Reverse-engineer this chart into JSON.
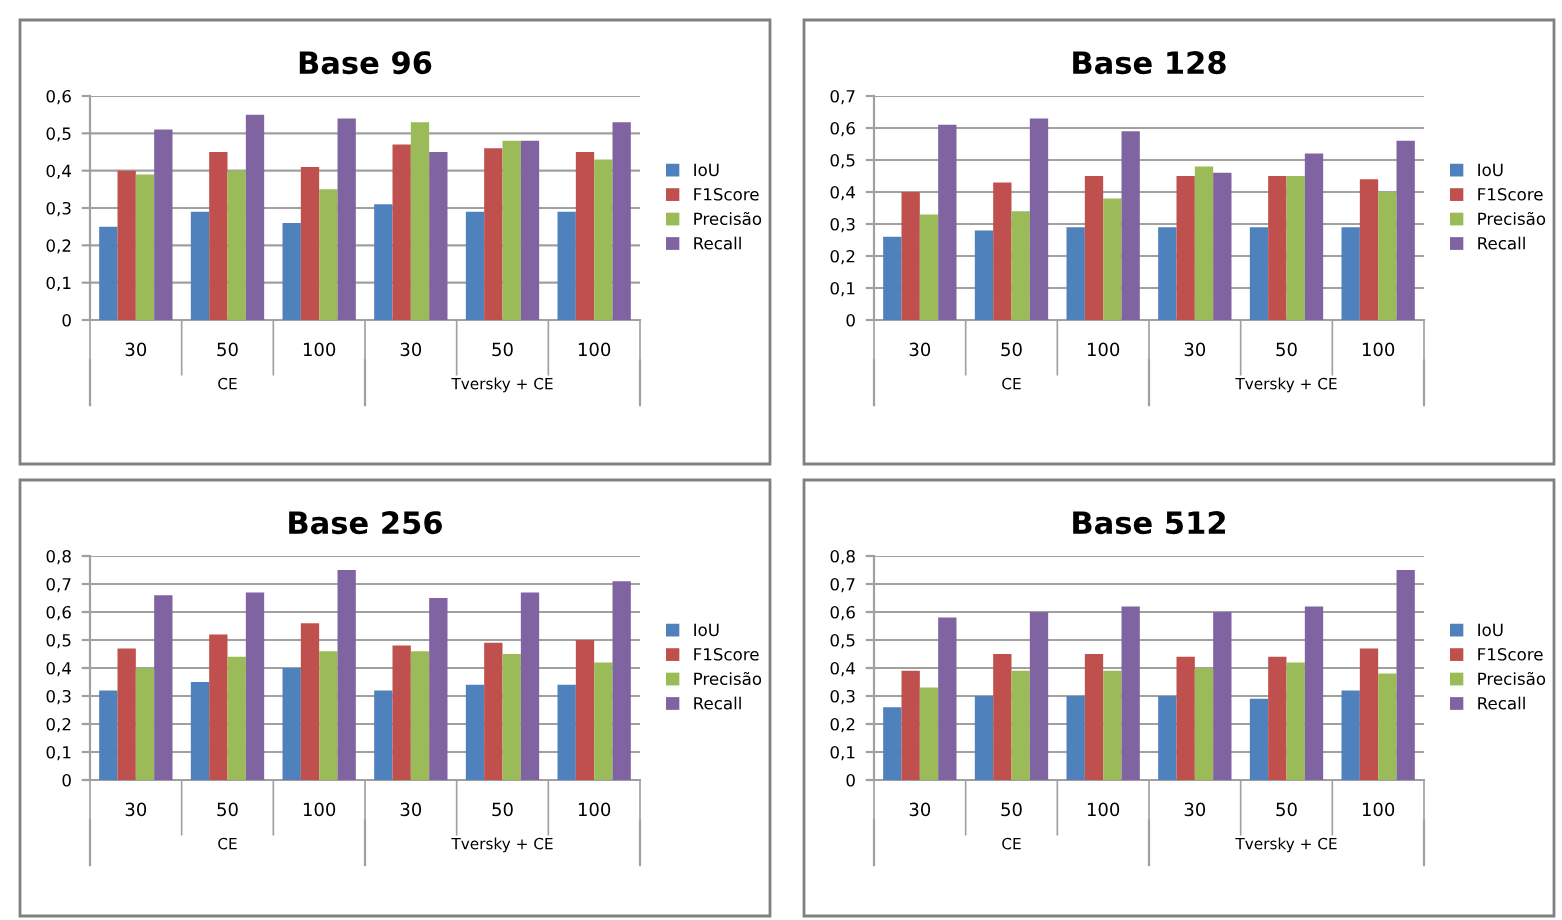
{
  "chart_data": [
    {
      "type": "bar",
      "title": "Base 96",
      "categories": [
        "30",
        "50",
        "100",
        "30",
        "50",
        "100"
      ],
      "annotations": [
        "CE",
        "Tversky + CE"
      ],
      "ylim": [
        0,
        0.6
      ],
      "yticks": [
        {
          "value": 0,
          "label": "0"
        },
        {
          "value": 0.1,
          "label": "0,1"
        },
        {
          "value": 0.2,
          "label": "0,2"
        },
        {
          "value": 0.3,
          "label": "0,3"
        },
        {
          "value": 0.4,
          "label": "0,4"
        },
        {
          "value": 0.5,
          "label": "0,5"
        },
        {
          "value": 0.6,
          "label": "0,6"
        }
      ],
      "grid": "y",
      "legend": "right",
      "series": [
        {
          "name": "IoU",
          "color": "#4f81bd",
          "values": [
            0.25,
            0.29,
            0.26,
            0.31,
            0.29,
            0.29
          ]
        },
        {
          "name": "F1Score",
          "color": "#c0504d",
          "values": [
            0.4,
            0.45,
            0.41,
            0.47,
            0.46,
            0.45
          ]
        },
        {
          "name": "Precisão",
          "color": "#9bbb59",
          "values": [
            0.39,
            0.4,
            0.35,
            0.53,
            0.48,
            0.43
          ]
        },
        {
          "name": "Recall",
          "color": "#8064a2",
          "values": [
            0.51,
            0.55,
            0.54,
            0.45,
            0.48,
            0.53
          ]
        }
      ]
    },
    {
      "type": "bar",
      "title": "Base 128",
      "categories": [
        "30",
        "50",
        "100",
        "30",
        "50",
        "100"
      ],
      "annotations": [
        "CE",
        "Tversky + CE"
      ],
      "ylim": [
        0,
        0.7
      ],
      "yticks": [
        {
          "value": 0,
          "label": "0"
        },
        {
          "value": 0.1,
          "label": "0,1"
        },
        {
          "value": 0.2,
          "label": "0,2"
        },
        {
          "value": 0.3,
          "label": "0,3"
        },
        {
          "value": 0.4,
          "label": "0,4"
        },
        {
          "value": 0.5,
          "label": "0,5"
        },
        {
          "value": 0.6,
          "label": "0,6"
        },
        {
          "value": 0.7,
          "label": "0,7"
        }
      ],
      "grid": "y",
      "legend": "right",
      "series": [
        {
          "name": "IoU",
          "color": "#4f81bd",
          "values": [
            0.26,
            0.28,
            0.29,
            0.29,
            0.29,
            0.29
          ]
        },
        {
          "name": "F1Score",
          "color": "#c0504d",
          "values": [
            0.4,
            0.43,
            0.45,
            0.45,
            0.45,
            0.44
          ]
        },
        {
          "name": "Precisão",
          "color": "#9bbb59",
          "values": [
            0.33,
            0.34,
            0.38,
            0.48,
            0.45,
            0.4
          ]
        },
        {
          "name": "Recall",
          "color": "#8064a2",
          "values": [
            0.61,
            0.63,
            0.59,
            0.46,
            0.52,
            0.56
          ]
        }
      ]
    },
    {
      "type": "bar",
      "title": "Base 256",
      "categories": [
        "30",
        "50",
        "100",
        "30",
        "50",
        "100"
      ],
      "annotations": [
        "CE",
        "Tversky + CE"
      ],
      "ylim": [
        0,
        0.8
      ],
      "yticks": [
        {
          "value": 0,
          "label": "0"
        },
        {
          "value": 0.1,
          "label": "0,1"
        },
        {
          "value": 0.2,
          "label": "0,2"
        },
        {
          "value": 0.3,
          "label": "0,3"
        },
        {
          "value": 0.4,
          "label": "0,4"
        },
        {
          "value": 0.5,
          "label": "0,5"
        },
        {
          "value": 0.6,
          "label": "0,6"
        },
        {
          "value": 0.7,
          "label": "0,7"
        },
        {
          "value": 0.8,
          "label": "0,8"
        }
      ],
      "grid": "y",
      "legend": "right",
      "series": [
        {
          "name": "IoU",
          "color": "#4f81bd",
          "values": [
            0.32,
            0.35,
            0.4,
            0.32,
            0.34,
            0.34
          ]
        },
        {
          "name": "F1Score",
          "color": "#c0504d",
          "values": [
            0.47,
            0.52,
            0.56,
            0.48,
            0.49,
            0.5
          ]
        },
        {
          "name": "Precisão",
          "color": "#9bbb59",
          "values": [
            0.4,
            0.44,
            0.46,
            0.46,
            0.45,
            0.42
          ]
        },
        {
          "name": "Recall",
          "color": "#8064a2",
          "values": [
            0.66,
            0.67,
            0.75,
            0.65,
            0.67,
            0.71
          ]
        }
      ]
    },
    {
      "type": "bar",
      "title": "Base 512",
      "categories": [
        "30",
        "50",
        "100",
        "30",
        "50",
        "100"
      ],
      "annotations": [
        "CE",
        "Tversky + CE"
      ],
      "ylim": [
        0,
        0.8
      ],
      "yticks": [
        {
          "value": 0,
          "label": "0"
        },
        {
          "value": 0.1,
          "label": "0,1"
        },
        {
          "value": 0.2,
          "label": "0,2"
        },
        {
          "value": 0.3,
          "label": "0,3"
        },
        {
          "value": 0.4,
          "label": "0,4"
        },
        {
          "value": 0.5,
          "label": "0,5"
        },
        {
          "value": 0.6,
          "label": "0,6"
        },
        {
          "value": 0.7,
          "label": "0,7"
        },
        {
          "value": 0.8,
          "label": "0,8"
        }
      ],
      "grid": "y",
      "legend": "right",
      "series": [
        {
          "name": "IoU",
          "color": "#4f81bd",
          "values": [
            0.26,
            0.3,
            0.3,
            0.3,
            0.29,
            0.32
          ]
        },
        {
          "name": "F1Score",
          "color": "#c0504d",
          "values": [
            0.39,
            0.45,
            0.45,
            0.44,
            0.44,
            0.47
          ]
        },
        {
          "name": "Precisão",
          "color": "#9bbb59",
          "values": [
            0.33,
            0.39,
            0.39,
            0.4,
            0.42,
            0.38
          ]
        },
        {
          "name": "Recall",
          "color": "#8064a2",
          "values": [
            0.58,
            0.6,
            0.62,
            0.6,
            0.62,
            0.75
          ]
        }
      ]
    }
  ]
}
